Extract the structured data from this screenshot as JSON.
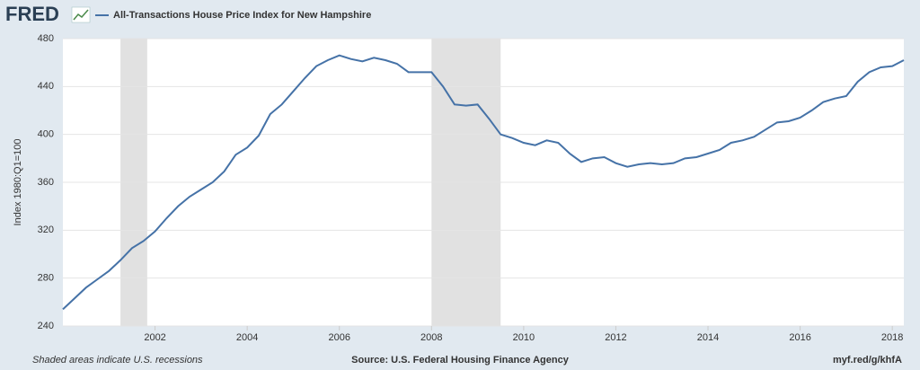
{
  "logo": "FRED",
  "chart_data": {
    "type": "line",
    "ylabel": "Index 1980:Q1=100",
    "note": "Shaded areas indicate U.S. recessions",
    "source": "Source: U.S. Federal Housing Finance Agency",
    "link": "myf.red/g/khfA",
    "x": [
      2000.0,
      2000.25,
      2000.5,
      2000.75,
      2001.0,
      2001.25,
      2001.5,
      2001.75,
      2002.0,
      2002.25,
      2002.5,
      2002.75,
      2003.0,
      2003.25,
      2003.5,
      2003.75,
      2004.0,
      2004.25,
      2004.5,
      2004.75,
      2005.0,
      2005.25,
      2005.5,
      2005.75,
      2006.0,
      2006.25,
      2006.5,
      2006.75,
      2007.0,
      2007.25,
      2007.5,
      2007.75,
      2008.0,
      2008.25,
      2008.5,
      2008.75,
      2009.0,
      2009.25,
      2009.5,
      2009.75,
      2010.0,
      2010.25,
      2010.5,
      2010.75,
      2011.0,
      2011.25,
      2011.5,
      2011.75,
      2012.0,
      2012.25,
      2012.5,
      2012.75,
      2013.0,
      2013.25,
      2013.5,
      2013.75,
      2014.0,
      2014.25,
      2014.5,
      2014.75,
      2015.0,
      2015.25,
      2015.5,
      2015.75,
      2016.0,
      2016.25,
      2016.5,
      2016.75,
      2017.0,
      2017.25,
      2017.5,
      2017.75,
      2018.0,
      2018.25
    ],
    "series": [
      {
        "name": "All-Transactions House Price Index for New Hampshire",
        "color": "#4572a7",
        "values": [
          254,
          263,
          272,
          279,
          286,
          295,
          305,
          311,
          319,
          330,
          340,
          348,
          354,
          360,
          369,
          383,
          389,
          399,
          417,
          425,
          436,
          447,
          457,
          462,
          466,
          463,
          461,
          464,
          462,
          459,
          452,
          452,
          452,
          440,
          425,
          424,
          425,
          413,
          400,
          397,
          393,
          391,
          395,
          393,
          384,
          377,
          380,
          381,
          376,
          373,
          375,
          376,
          375,
          376,
          380,
          381,
          384,
          387,
          393,
          395,
          398,
          404,
          410,
          411,
          414,
          420,
          427,
          430,
          432,
          444,
          452,
          456,
          457,
          462
        ]
      }
    ],
    "recessions": [
      [
        2001.25,
        2001.83
      ],
      [
        2008.0,
        2009.5
      ]
    ],
    "xlim": [
      2000,
      2018.25
    ],
    "xticks": [
      2002,
      2004,
      2006,
      2008,
      2010,
      2012,
      2014,
      2016,
      2018
    ],
    "ylim": [
      240,
      480
    ],
    "yticks": [
      240,
      280,
      320,
      360,
      400,
      440,
      480
    ],
    "grid": true
  }
}
